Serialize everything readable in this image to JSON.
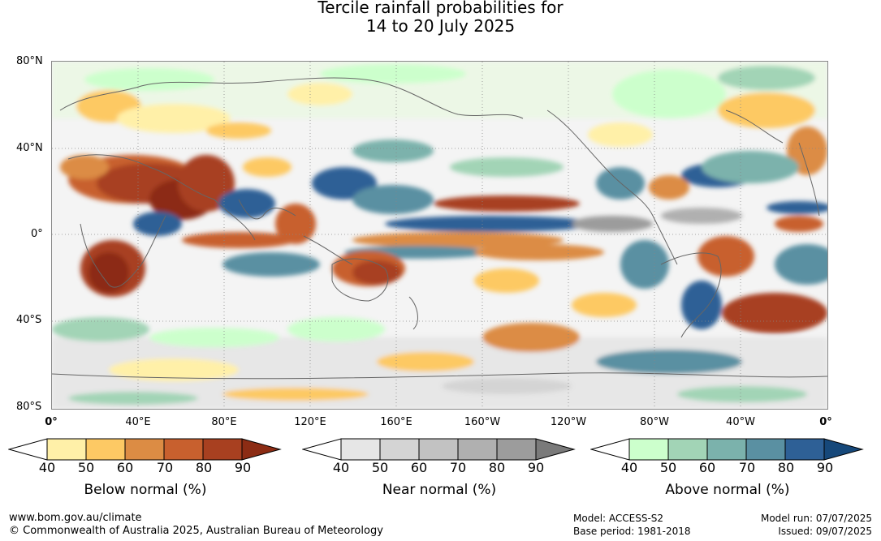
{
  "title": {
    "line1": "Tercile rainfall probabilities for",
    "line2": "14 to 20 July 2025"
  },
  "map": {
    "lat_labels": [
      "80°N",
      "40°N",
      "0°",
      "40°S",
      "80°S"
    ],
    "lon_labels": [
      "0°",
      "40°E",
      "80°E",
      "120°E",
      "160°E",
      "160°W",
      "120°W",
      "80°W",
      "40°W",
      "0°"
    ]
  },
  "colors": {
    "below": [
      "#fff0a8",
      "#fdc964",
      "#dc8c44",
      "#c8602e",
      "#a84020",
      "#8c2c14"
    ],
    "near": [
      "#e6e6e6",
      "#d4d4d4",
      "#c2c2c2",
      "#b0b0b0",
      "#9c9c9c",
      "#7a7a7a"
    ],
    "above": [
      "#ccffcc",
      "#a2d4b6",
      "#7bb2ac",
      "#5a90a2",
      "#2e6096",
      "#16487a"
    ],
    "coast": "#666666"
  },
  "legends": [
    {
      "name": "below",
      "title": "Below normal (%)",
      "ticks": [
        "40",
        "50",
        "60",
        "70",
        "80",
        "90"
      ]
    },
    {
      "name": "near",
      "title": "Near normal (%)",
      "ticks": [
        "40",
        "50",
        "60",
        "70",
        "80",
        "90"
      ]
    },
    {
      "name": "above",
      "title": "Above normal (%)",
      "ticks": [
        "40",
        "50",
        "60",
        "70",
        "80",
        "90"
      ]
    }
  ],
  "footer": {
    "site": "www.bom.gov.au/climate",
    "copyright": "© Commonwealth of Australia 2025, Australian Bureau of Meteorology",
    "model": "Model: ACCESS-S2",
    "base_period": "Base period: 1981-2018",
    "model_run": "Model run: 07/07/2025",
    "issued": "Issued: 09/07/2025"
  }
}
